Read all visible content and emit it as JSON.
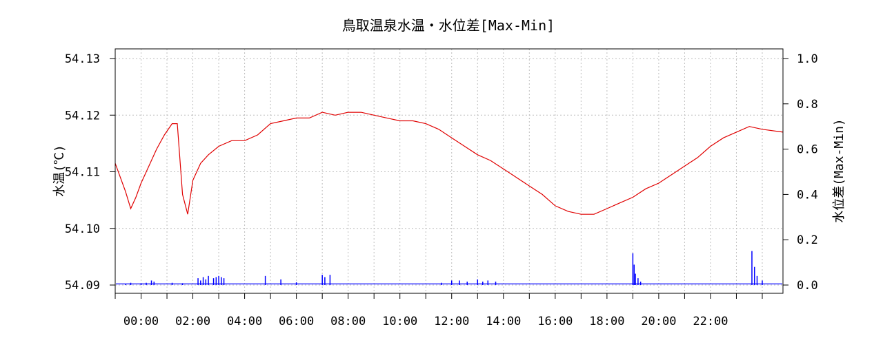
{
  "chart_data": {
    "type": "line",
    "title": "鳥取温泉水温・水位差[Max-Min]",
    "ylabel": "水温(℃)",
    "y2label": "水位差(Max-Min)",
    "ylim": [
      54.09,
      54.13
    ],
    "y2lim": [
      0.0,
      1.0
    ],
    "yticks": [
      "54.09",
      "54.10",
      "54.11",
      "54.12",
      "54.13"
    ],
    "y2ticks": [
      "0.0",
      "0.2",
      "0.4",
      "0.6",
      "0.8",
      "1.0"
    ],
    "xlim_hours": [
      -1,
      24.8
    ],
    "xticks": [
      "00:00",
      "02:00",
      "04:00",
      "06:00",
      "08:00",
      "10:00",
      "12:00",
      "14:00",
      "16:00",
      "18:00",
      "20:00",
      "22:00"
    ],
    "grid": true,
    "series": [
      {
        "axis": "left",
        "color": "#e00000",
        "hours": [
          -1,
          -0.6,
          -0.4,
          -0.2,
          0,
          0.3,
          0.6,
          0.9,
          1.2,
          1.4,
          1.6,
          1.8,
          2.0,
          2.3,
          2.6,
          3.0,
          3.5,
          4.0,
          4.5,
          5.0,
          5.5,
          6.0,
          6.5,
          7.0,
          7.5,
          8.0,
          8.5,
          9.0,
          9.5,
          10.0,
          10.5,
          11.0,
          11.5,
          12.0,
          12.5,
          13.0,
          13.5,
          14.0,
          14.5,
          15.0,
          15.5,
          16.0,
          16.5,
          17.0,
          17.5,
          18.0,
          18.5,
          19.0,
          19.5,
          20.0,
          20.5,
          21.0,
          21.5,
          22.0,
          22.5,
          23.0,
          23.5,
          24.0,
          24.8
        ],
        "values": [
          54.1115,
          54.1065,
          54.1035,
          54.1055,
          54.108,
          54.111,
          54.114,
          54.1165,
          54.1185,
          54.1185,
          54.106,
          54.1025,
          54.1085,
          54.1115,
          54.113,
          54.1145,
          54.1155,
          54.1155,
          54.1165,
          54.1185,
          54.119,
          54.1195,
          54.1195,
          54.1205,
          54.12,
          54.1205,
          54.1205,
          54.12,
          54.1195,
          54.119,
          54.119,
          54.1185,
          54.1175,
          54.116,
          54.1145,
          54.113,
          54.112,
          54.1105,
          54.109,
          54.1075,
          54.106,
          54.104,
          54.103,
          54.1025,
          54.1025,
          54.1035,
          54.1045,
          54.1055,
          54.107,
          54.108,
          54.1095,
          54.111,
          54.1125,
          54.1145,
          54.116,
          54.117,
          54.118,
          54.1175,
          54.117
        ]
      },
      {
        "axis": "right",
        "color": "#0000ff",
        "type": "spikes",
        "hours": [
          -0.6,
          -0.4,
          0,
          0.2,
          0.4,
          0.5,
          1.2,
          1.6,
          2.2,
          2.3,
          2.4,
          2.5,
          2.6,
          2.8,
          2.9,
          3.0,
          3.1,
          3.2,
          4.8,
          5.4,
          6.0,
          7.0,
          7.1,
          7.3,
          11.6,
          12.0,
          12.3,
          12.6,
          13.0,
          13.2,
          13.4,
          13.7,
          19.0,
          19.05,
          19.1,
          19.2,
          19.3,
          23.6,
          23.7,
          23.8,
          24.0
        ],
        "values": [
          0.005,
          0.01,
          0.008,
          0.01,
          0.02,
          0.015,
          0.01,
          0.008,
          0.03,
          0.02,
          0.035,
          0.025,
          0.04,
          0.03,
          0.035,
          0.04,
          0.035,
          0.03,
          0.04,
          0.025,
          0.012,
          0.045,
          0.035,
          0.045,
          0.01,
          0.02,
          0.02,
          0.015,
          0.025,
          0.015,
          0.02,
          0.015,
          0.14,
          0.09,
          0.05,
          0.03,
          0.015,
          0.15,
          0.08,
          0.04,
          0.02
        ],
        "baseline": 0.005
      }
    ]
  }
}
